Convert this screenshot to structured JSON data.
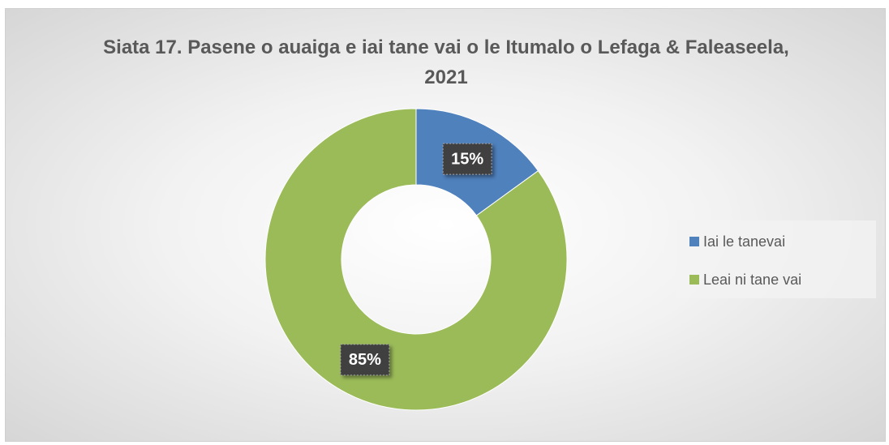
{
  "chart_data": {
    "type": "donut",
    "title": "Siata 17. Pasene o auaiga e iai tane vai o le Itumalo o Lefaga & Faleaseela, 2021",
    "categories": [
      "Iai le tanevai",
      "Leai ni tane vai"
    ],
    "values": [
      15,
      85
    ],
    "value_labels": [
      "15%",
      "85%"
    ],
    "colors": [
      "#4f81bd",
      "#9bbb59"
    ],
    "legend": "right"
  }
}
